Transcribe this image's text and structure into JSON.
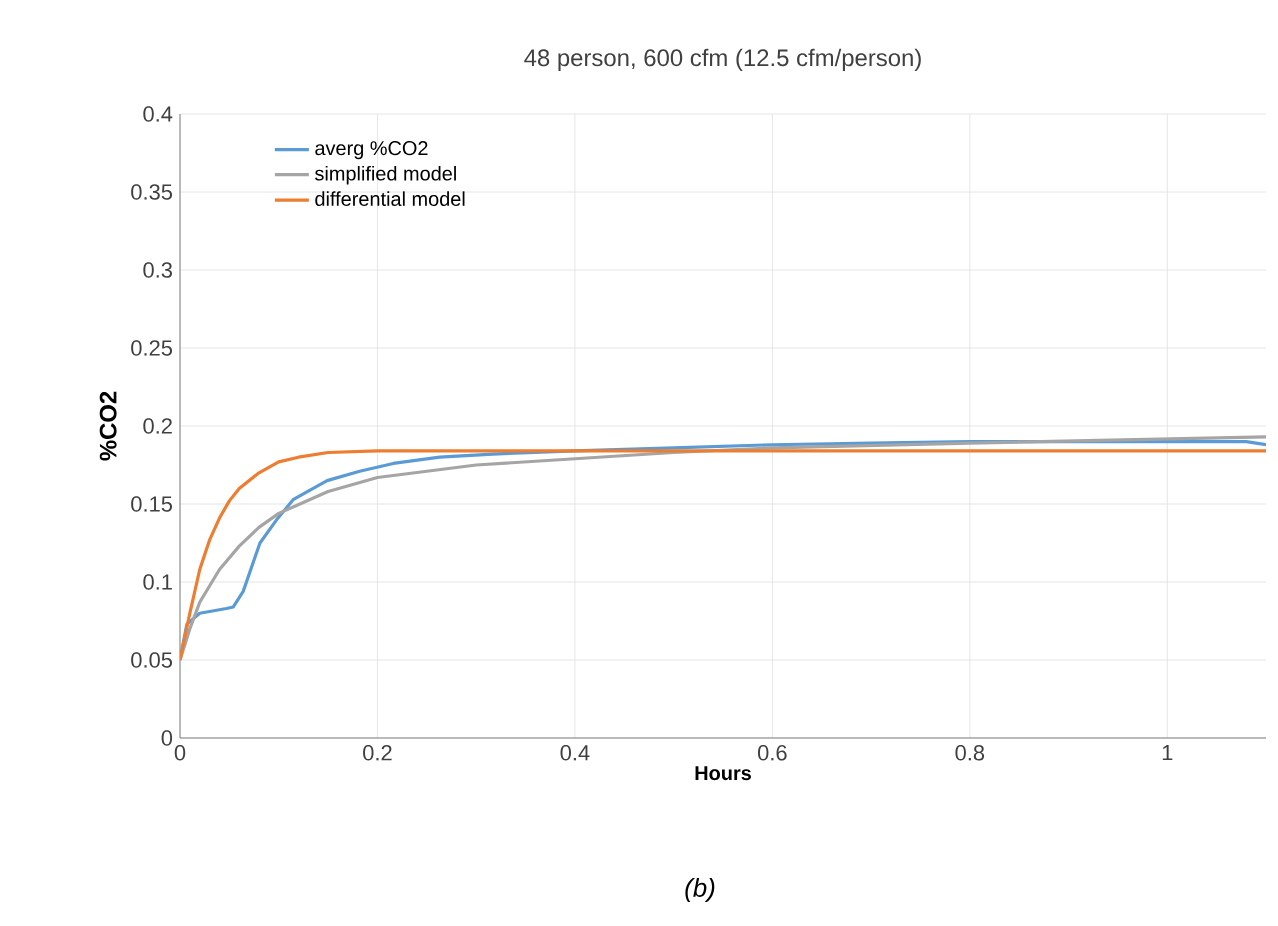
{
  "chart_data": {
    "type": "line",
    "title": "48 person, 600 cfm (12.5 cfm/person)",
    "xlabel": "Hours",
    "ylabel": "%CO2",
    "annotations": [
      "(b)"
    ],
    "xlim": [
      0,
      1.1
    ],
    "xticks": [
      0,
      0.2,
      0.4,
      0.6,
      0.8,
      1
    ],
    "ylim": [
      0,
      0.4
    ],
    "yticks": [
      0,
      0.05,
      0.1,
      0.15,
      0.2,
      0.25,
      0.3,
      0.35,
      0.4
    ],
    "grid": true,
    "legend": "top left",
    "line_style": "solid",
    "marker": "none",
    "series": [
      {
        "name": "averg %CO2",
        "color": "#5b9bd5",
        "x": [
          0,
          0.007,
          0.02,
          0.047,
          0.054,
          0.064,
          0.081,
          0.098,
          0.115,
          0.149,
          0.182,
          0.216,
          0.263,
          0.317,
          0.4,
          0.5,
          0.6,
          0.7,
          0.8,
          0.9,
          1.0,
          1.08,
          1.1
        ],
        "values": [
          0.05,
          0.073,
          0.08,
          0.083,
          0.084,
          0.094,
          0.125,
          0.14,
          0.153,
          0.165,
          0.171,
          0.176,
          0.18,
          0.182,
          0.184,
          0.186,
          0.188,
          0.189,
          0.19,
          0.19,
          0.19,
          0.19,
          0.188
        ]
      },
      {
        "name": "simplified model",
        "color": "#a5a5a5",
        "x": [
          0,
          0.01,
          0.02,
          0.04,
          0.06,
          0.08,
          0.1,
          0.15,
          0.2,
          0.3,
          0.4,
          0.5,
          0.6,
          0.8,
          1.1
        ],
        "values": [
          0.05,
          0.07,
          0.087,
          0.108,
          0.123,
          0.135,
          0.144,
          0.158,
          0.167,
          0.175,
          0.179,
          0.183,
          0.186,
          0.189,
          0.193
        ]
      },
      {
        "name": "differential model",
        "color": "#ed7d31",
        "x": [
          0,
          0.01,
          0.02,
          0.03,
          0.04,
          0.05,
          0.06,
          0.08,
          0.1,
          0.12,
          0.15,
          0.2,
          0.3,
          1.1
        ],
        "values": [
          0.05,
          0.08,
          0.108,
          0.127,
          0.141,
          0.152,
          0.16,
          0.17,
          0.177,
          0.18,
          0.183,
          0.184,
          0.184,
          0.184
        ]
      }
    ]
  }
}
